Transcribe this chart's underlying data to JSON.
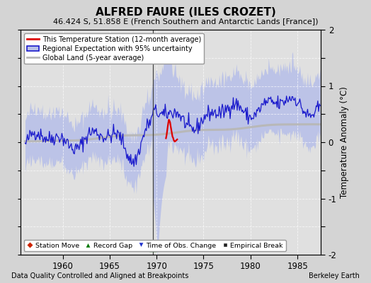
{
  "title": "ALFRED FAURE (ILES CROZET)",
  "subtitle": "46.424 S, 51.858 E (French Southern and Antarctic Lands [France])",
  "ylabel": "Temperature Anomaly (°C)",
  "xlabel_left": "Data Quality Controlled and Aligned at Breakpoints",
  "xlabel_right": "Berkeley Earth",
  "ylim": [
    -2,
    2
  ],
  "xlim": [
    1955.5,
    1987.5
  ],
  "xticks": [
    1960,
    1965,
    1970,
    1975,
    1980,
    1985
  ],
  "yticks": [
    -2,
    -1.5,
    -1,
    -0.5,
    0,
    0.5,
    1,
    1.5,
    2
  ],
  "bg_color": "#d4d4d4",
  "plot_bg_color": "#e0e0e0",
  "region_fill_color": "#b8c0e8",
  "region_line_color": "#1a1acc",
  "station_color": "#dd0000",
  "global_color": "#b8b8b8",
  "vline_color": "#444444",
  "grid_color": "#ffffff",
  "legend1_labels": [
    "This Temperature Station (12-month average)",
    "Regional Expectation with 95% uncertainty",
    "Global Land (5-year average)"
  ],
  "legend2_labels": [
    "Station Move",
    "Record Gap",
    "Time of Obs. Change",
    "Empirical Break"
  ],
  "vline_x": 1969.58,
  "record_gap_x": 1969.58,
  "seed": 42
}
